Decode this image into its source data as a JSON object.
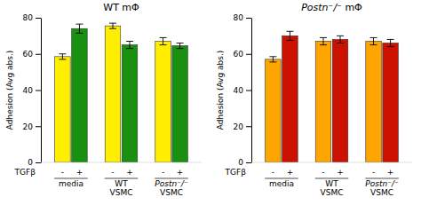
{
  "chart_data": [
    {
      "type": "bar",
      "title": "WT mΦ",
      "y_label": "Adhesion (Avg abs.)",
      "categories": [
        "media",
        "WT\nVSMC",
        "Postn⁻/⁻\nVSMC"
      ],
      "series": [
        {
          "name": "-",
          "color": "#FFEE00",
          "values": [
            58.5,
            75.5,
            67.0
          ],
          "errors": [
            1.5,
            1.5,
            2.0
          ]
        },
        {
          "name": "+",
          "color": "#1A9010",
          "values": [
            74.0,
            65.0,
            64.5
          ],
          "errors": [
            2.5,
            2.0,
            1.5
          ]
        }
      ],
      "annotations": [
        "TGFβ"
      ],
      "ylim": [
        0,
        80
      ],
      "yticks": [
        0,
        20,
        40,
        60,
        80
      ]
    },
    {
      "type": "bar",
      "title": "Postn⁻/⁻ mΦ",
      "y_label": "Adhesion (Avg abs.)",
      "categories": [
        "media",
        "WT\nVSMC",
        "Postn⁻/⁻\nVSMC"
      ],
      "series": [
        {
          "name": "-",
          "color": "#FFA500",
          "values": [
            57.0,
            67.0,
            67.0
          ],
          "errors": [
            1.5,
            2.0,
            2.0
          ]
        },
        {
          "name": "+",
          "color": "#CC1100",
          "values": [
            70.0,
            68.0,
            66.0
          ],
          "errors": [
            2.5,
            2.0,
            2.0
          ]
        }
      ],
      "annotations": [
        "TGFβ"
      ],
      "ylim": [
        0,
        80
      ],
      "yticks": [
        0,
        20,
        40,
        60,
        80
      ]
    }
  ]
}
